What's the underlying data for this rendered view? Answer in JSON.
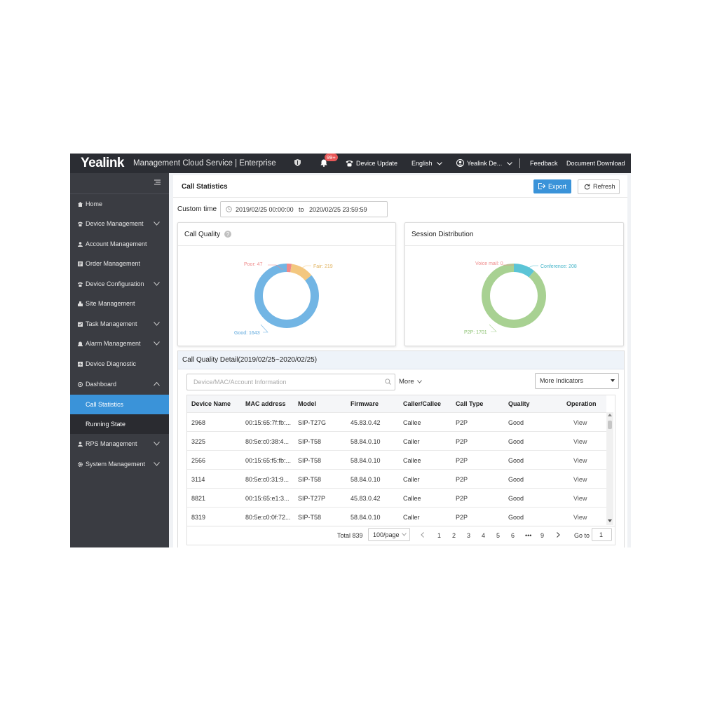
{
  "topbar": {
    "logo": "Yealink",
    "product": "Management Cloud Service | Enterprise",
    "notification_badge": "99+",
    "device_update": "Device Update",
    "language": "English",
    "user": "Yealink De...",
    "feedback": "Feedback",
    "document_download": "Document Download"
  },
  "sidebar": {
    "items": [
      {
        "label": "Home",
        "icon": "home-icon"
      },
      {
        "label": "Device Management",
        "icon": "device-icon"
      },
      {
        "label": "Account Management",
        "icon": "user-icon"
      },
      {
        "label": "Order Management",
        "icon": "order-icon"
      },
      {
        "label": "Device Configuration",
        "icon": "config-icon"
      },
      {
        "label": "Site Management",
        "icon": "site-icon"
      },
      {
        "label": "Task Management",
        "icon": "task-icon"
      },
      {
        "label": "Alarm Management",
        "icon": "alarm-icon"
      },
      {
        "label": "Device Diagnostic",
        "icon": "diagnostic-icon"
      },
      {
        "label": "Dashboard",
        "icon": "dashboard-icon"
      },
      {
        "label": "RPS Management",
        "icon": "rps-icon"
      },
      {
        "label": "System Management",
        "icon": "system-icon"
      }
    ],
    "dashboard_sub": [
      "Call Statistics",
      "Running State"
    ]
  },
  "main": {
    "title": "Call Statistics",
    "export": "Export",
    "refresh": "Refresh",
    "custom_time_label": "Custom time",
    "date_from": "2019/02/25 00:00:00",
    "date_to_word": "to",
    "date_to": "2020/02/25 23:59:59"
  },
  "call_quality": {
    "title": "Call Quality",
    "labels": [
      "Poor: 47",
      "Fair: 219",
      "Good: 1643"
    ]
  },
  "session_distribution": {
    "title": "Session Distribution",
    "labels": [
      "Voice mail: 0",
      "Conference: 208",
      "P2P: 1701"
    ]
  },
  "chart_data": [
    {
      "type": "pie",
      "title": "Call Quality",
      "categories": [
        "Poor",
        "Fair",
        "Good"
      ],
      "values": [
        47,
        219,
        1643
      ],
      "colors": [
        "#ef8a8a",
        "#f3c77f",
        "#72b5e4"
      ]
    },
    {
      "type": "pie",
      "title": "Session Distribution",
      "categories": [
        "Voice mail",
        "Conference",
        "P2P"
      ],
      "values": [
        0,
        208,
        1701
      ],
      "colors": [
        "#ef8a8a",
        "#5bc4d6",
        "#a8d192"
      ]
    }
  ],
  "detail": {
    "title": "Call Quality Detail(2019/02/25~2020/02/25)",
    "search_placeholder": "Device/MAC/Account Information",
    "more": "More",
    "more_indicators": "More Indicators",
    "columns": [
      "Device Name",
      "MAC address",
      "Model",
      "Firmware",
      "Caller/Callee",
      "Call Type",
      "Quality",
      "Operation"
    ],
    "rows": [
      [
        "2968",
        "00:15:65:7f:fb:...",
        "SIP-T27G",
        "45.83.0.42",
        "Callee",
        "P2P",
        "Good",
        "View"
      ],
      [
        "3225",
        "80:5e:c0:38:4...",
        "SIP-T58",
        "58.84.0.10",
        "Caller",
        "P2P",
        "Good",
        "View"
      ],
      [
        "2566",
        "00:15:65:f5:fb:...",
        "SIP-T58",
        "58.84.0.10",
        "Callee",
        "P2P",
        "Good",
        "View"
      ],
      [
        "3114",
        "80:5e:c0:31:9...",
        "SIP-T58",
        "58.84.0.10",
        "Caller",
        "P2P",
        "Good",
        "View"
      ],
      [
        "8821",
        "00:15:65:e1:3...",
        "SIP-T27P",
        "45.83.0.42",
        "Callee",
        "P2P",
        "Good",
        "View"
      ],
      [
        "8319",
        "80:5e:c0:0f:72...",
        "SIP-T58",
        "58.84.0.10",
        "Caller",
        "P2P",
        "Good",
        "View"
      ]
    ]
  },
  "pagination": {
    "total": "Total 839",
    "per_page": "100/page",
    "pages": [
      "1",
      "2",
      "3",
      "4",
      "5",
      "6",
      "•••",
      "9"
    ],
    "goto_label": "Go to",
    "goto_value": "1"
  }
}
